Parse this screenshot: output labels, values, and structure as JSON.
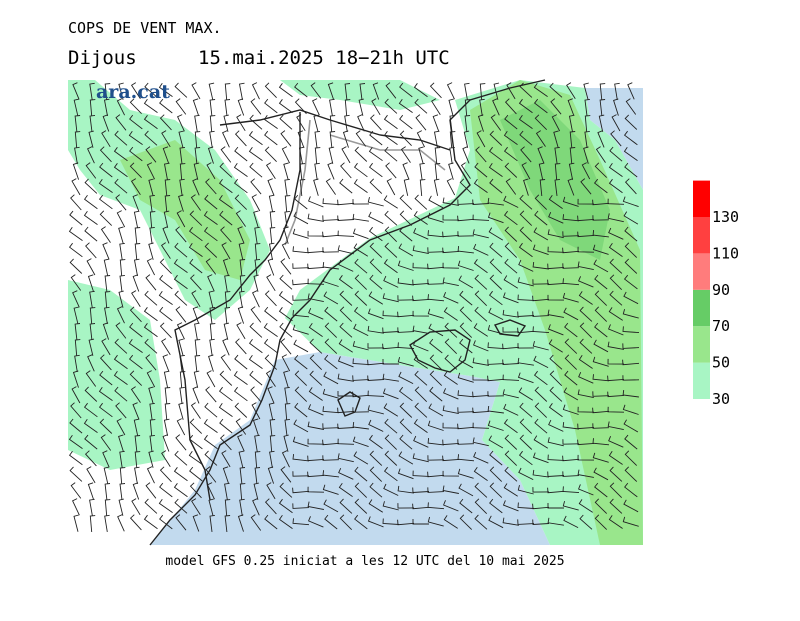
{
  "header": {
    "title": "COPS DE VENT MAX.",
    "day": "Dijous",
    "date": "15.mai.2025 18−21h UTC"
  },
  "logo": "ara.cat",
  "footer": "model GFS 0.25 iniciat a les 12 UTC del 10 mai 2025",
  "legend": {
    "levels": [
      30,
      50,
      70,
      90,
      110,
      130
    ],
    "colors": [
      "#a8f5c4",
      "#99e68c",
      "#66cc66",
      "#ff7c7c",
      "#ff4040",
      "#ff0000"
    ]
  }
}
